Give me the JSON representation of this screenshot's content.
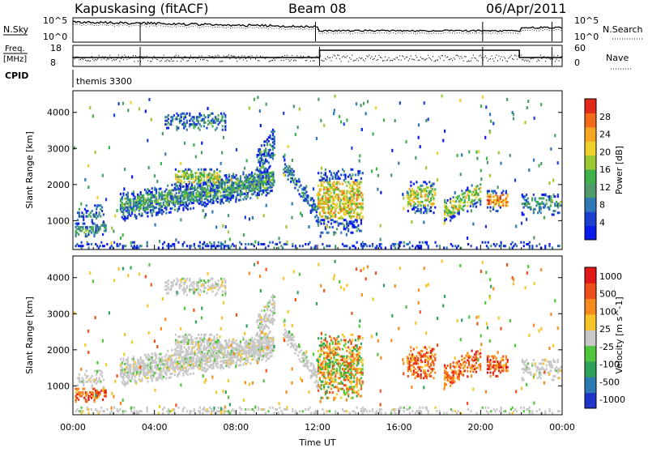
{
  "header": {
    "station": "Kapuskasing (fitACF)",
    "beam": "Beam 08",
    "date": "06/Apr/2011"
  },
  "panels_top": {
    "nsky_label": "N.Sky",
    "nsearch_label": "N.Search",
    "nsky_ticks": [
      "10^5",
      "10^0"
    ],
    "nsearch_ticks": [
      "10^5",
      "10^0"
    ],
    "freq_label_1": "Freq.",
    "freq_label_2": "[MHz]",
    "freq_ticks": [
      "18",
      "8"
    ],
    "nave_label": "Nave",
    "nave_ticks": [
      "60",
      "0"
    ],
    "cpid_label": "CPID",
    "cpid_value": "themis 3300"
  },
  "chart_data": [
    {
      "type": "heatmap",
      "name": "power",
      "ylabel": "Slant Range [km]",
      "yticks": [
        1000,
        2000,
        3000,
        4000
      ],
      "ylim": [
        200,
        4600
      ],
      "xlim": [
        0,
        24
      ],
      "colorbar_label": "Power [dB]",
      "colorbar_ticks": [
        "4",
        "8",
        "12",
        "16",
        "20",
        "24",
        "28"
      ],
      "colors": [
        "#0a1ae8",
        "#1d3fd0",
        "#2e78b8",
        "#4f9a6a",
        "#3fb14a",
        "#9cc832",
        "#ecd12c",
        "#f4a623",
        "#f06a1a",
        "#e2281b"
      ]
    },
    {
      "type": "heatmap",
      "name": "velocity",
      "ylabel": "Slant Range [km]",
      "yticks": [
        1000,
        2000,
        3000,
        4000
      ],
      "ylim": [
        200,
        4600
      ],
      "xlim": [
        0,
        24
      ],
      "xticks": [
        "00:00",
        "04:00",
        "08:00",
        "12:00",
        "16:00",
        "20:00",
        "00:00"
      ],
      "xlabel": "Time UT",
      "colorbar_label": "Velocity [m s^-1]",
      "colorbar_ticks": [
        "1000",
        "500",
        "100",
        "25",
        "-25",
        "-100",
        "-500",
        "-1000"
      ],
      "colors": [
        "#1f35c8",
        "#2c7ab2",
        "#2fa15a",
        "#4fc53a",
        "#c8c8c8",
        "#f6c52a",
        "#f58a1f",
        "#ef4f1a",
        "#e01818"
      ]
    }
  ]
}
